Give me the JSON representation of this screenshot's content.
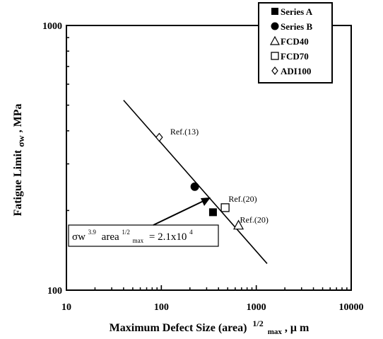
{
  "chart_data": {
    "type": "scatter",
    "xscale": "log",
    "yscale": "log",
    "xlim": [
      10,
      10000
    ],
    "ylim": [
      100,
      1000
    ],
    "x_ticks": [
      "10",
      "100",
      "1000",
      "10000"
    ],
    "y_ticks": [
      "100",
      "1000"
    ],
    "xlabel": "Maximum Defect Size (area)",
    "xlabel_sup": "1/2",
    "xlabel_sub": "max",
    "xlabel_unit": ", μ m",
    "ylabel": "Fatigue Limit",
    "ylabel_sym": "σw",
    "ylabel_unit": ", MPa",
    "grid": false,
    "legend_position": "top-right",
    "series": [
      {
        "name": "Series A",
        "marker": "filled-square",
        "points": [
          {
            "x": 350,
            "y": 197
          }
        ]
      },
      {
        "name": "Series B",
        "marker": "filled-circle",
        "points": [
          {
            "x": 225,
            "y": 246
          }
        ]
      },
      {
        "name": "FCD40",
        "marker": "open-triangle",
        "points": [
          {
            "x": 650,
            "y": 176
          }
        ]
      },
      {
        "name": "FCD70",
        "marker": "open-square",
        "points": [
          {
            "x": 470,
            "y": 205
          }
        ]
      },
      {
        "name": "ADI100",
        "marker": "open-diamond",
        "points": [
          {
            "x": 95,
            "y": 378
          }
        ]
      }
    ],
    "fit_line": {
      "x": [
        40,
        1300
      ],
      "y": [
        522,
        126
      ]
    },
    "annotations": [
      {
        "text": "Ref.(13)",
        "x": 175,
        "y": 388
      },
      {
        "text": "Ref.(20)",
        "x": 720,
        "y": 216
      },
      {
        "text": "Ref.(20)",
        "x": 950,
        "y": 180
      }
    ],
    "equation": {
      "sym": "σw",
      "exp": "3.9",
      "mid": "area",
      "sup2": "1/2",
      "sub2": "max",
      "rhs": "= 2.1x10",
      "rhs_exp": "4"
    }
  }
}
